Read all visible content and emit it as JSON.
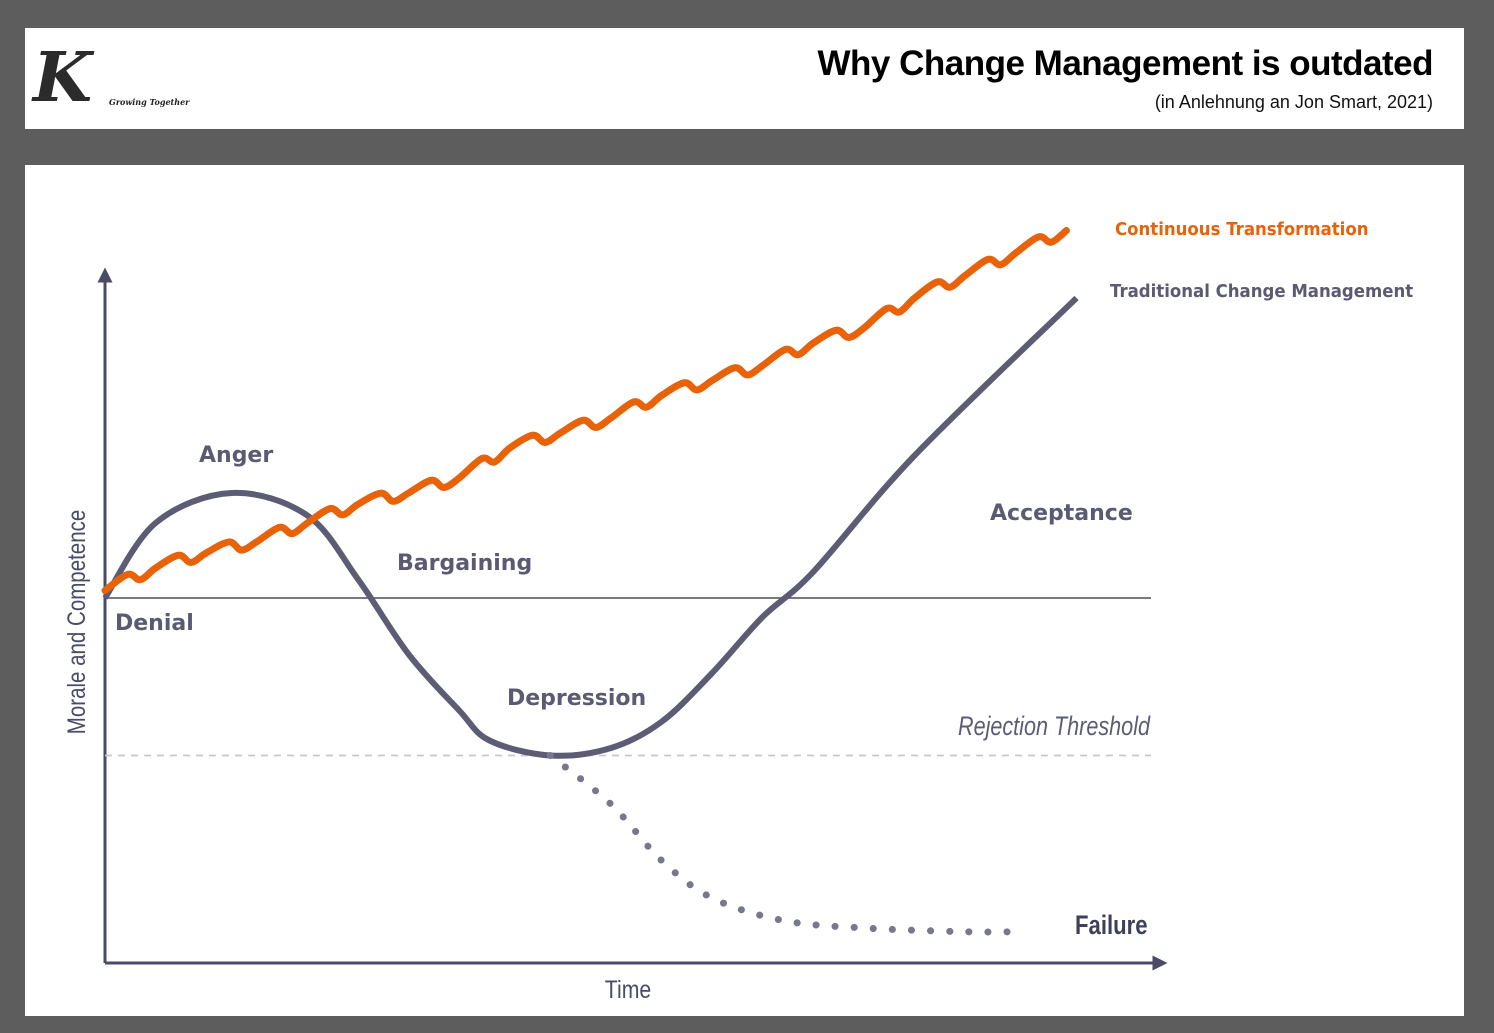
{
  "header": {
    "logo": {
      "letter": "K",
      "tagline": "Growing Together"
    },
    "title": "Why Change Management is outdated",
    "subtitle": "(in Anlehnung an Jon Smart, 2021)"
  },
  "colors": {
    "background": "#5d5d5d",
    "panel": "#ffffff",
    "continuous": "#e8620a",
    "traditional": "#5c5c74",
    "threshold": "#c8c8cc",
    "axis": "#4a4b66"
  },
  "chart_data": {
    "type": "line",
    "title": "Why Change Management is outdated",
    "xlabel": "Time",
    "ylabel": "Morale and Competence",
    "xlim": [
      0,
      100
    ],
    "ylim": [
      -100,
      100
    ],
    "grid": false,
    "baseline": {
      "y": 0
    },
    "threshold": {
      "label": "Rejection Threshold",
      "y": -42
    },
    "series": [
      {
        "name": "Traditional Change Management",
        "style": "solid",
        "x": [
          0,
          5,
          12.5,
          20,
          25,
          30,
          35,
          38,
          44,
          50,
          55,
          60,
          65,
          70,
          80,
          96
        ],
        "y": [
          0,
          20,
          28,
          22,
          5,
          -15,
          -30,
          -38,
          -42,
          -40,
          -33,
          -20,
          -5,
          7,
          38,
          80
        ]
      },
      {
        "name": "Failure",
        "style": "dotted",
        "x": [
          44,
          50,
          55,
          60,
          67,
          75,
          85,
          90
        ],
        "y": [
          -42,
          -55,
          -70,
          -80,
          -86,
          -88,
          -89,
          -89
        ]
      },
      {
        "name": "Continuous Transformation",
        "style": "wiggly",
        "x": [
          0,
          5,
          10,
          15,
          20,
          25,
          30,
          35,
          40,
          45,
          50,
          55,
          60,
          65,
          70,
          75,
          80,
          85,
          90,
          95
        ],
        "y": [
          2,
          8,
          12,
          15,
          20,
          25,
          28,
          32,
          40,
          44,
          48,
          54,
          58,
          62,
          68,
          72,
          80,
          86,
          92,
          98
        ]
      }
    ],
    "annotations": [
      {
        "text": "Denial",
        "x": 1,
        "y": -6
      },
      {
        "text": "Anger",
        "x": 12,
        "y": 38
      },
      {
        "text": "Bargaining",
        "x": 28,
        "y": 9
      },
      {
        "text": "Depression",
        "x": 38,
        "y": -27
      },
      {
        "text": "Acceptance",
        "x": 84,
        "y": 23
      },
      {
        "text": "Failure",
        "x": 92,
        "y": -88
      }
    ],
    "legend": {
      "placement": "top-right",
      "entries": [
        "Continuous Transformation",
        "Traditional Change Management"
      ]
    }
  }
}
